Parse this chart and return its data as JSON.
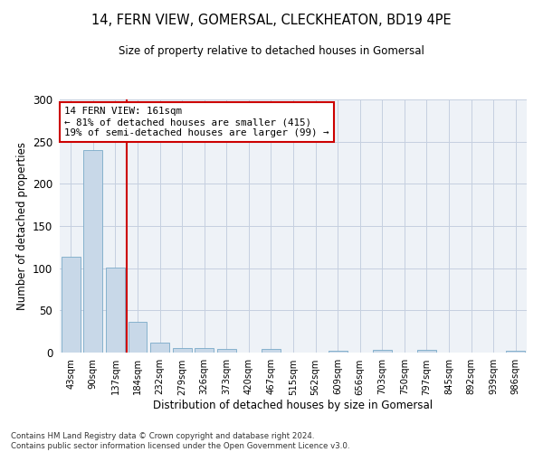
{
  "title": "14, FERN VIEW, GOMERSAL, CLECKHEATON, BD19 4PE",
  "subtitle": "Size of property relative to detached houses in Gomersal",
  "xlabel": "Distribution of detached houses by size in Gomersal",
  "ylabel": "Number of detached properties",
  "bar_color": "#c8d8e8",
  "bar_edge_color": "#7aaac8",
  "categories": [
    "43sqm",
    "90sqm",
    "137sqm",
    "184sqm",
    "232sqm",
    "279sqm",
    "326sqm",
    "373sqm",
    "420sqm",
    "467sqm",
    "515sqm",
    "562sqm",
    "609sqm",
    "656sqm",
    "703sqm",
    "750sqm",
    "797sqm",
    "845sqm",
    "892sqm",
    "939sqm",
    "986sqm"
  ],
  "values": [
    114,
    240,
    101,
    36,
    12,
    5,
    5,
    4,
    0,
    4,
    0,
    0,
    2,
    0,
    3,
    0,
    3,
    0,
    0,
    0,
    2
  ],
  "ylim": [
    0,
    300
  ],
  "yticks": [
    0,
    50,
    100,
    150,
    200,
    250,
    300
  ],
  "annotation_text": "14 FERN VIEW: 161sqm\n← 81% of detached houses are smaller (415)\n19% of semi-detached houses are larger (99) →",
  "vline_x": 2.5,
  "vline_color": "#cc0000",
  "footer_line1": "Contains HM Land Registry data © Crown copyright and database right 2024.",
  "footer_line2": "Contains public sector information licensed under the Open Government Licence v3.0.",
  "background_color": "#eef2f7",
  "grid_color": "#c5cfe0"
}
